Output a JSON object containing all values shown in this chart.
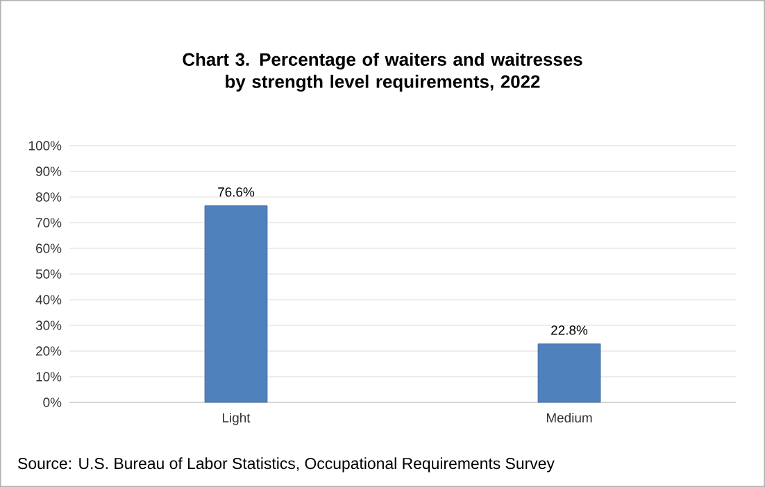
{
  "chart_data": {
    "type": "bar",
    "title": "Chart 3. Percentage of waiters and waitresses by strength level requirements, 2022",
    "categories": [
      "Light",
      "Medium"
    ],
    "values": [
      76.6,
      22.8
    ],
    "value_labels": [
      "76.6%",
      "22.8%"
    ],
    "color": "#4f81bd",
    "ylim": [
      0,
      100
    ],
    "yticks": [
      {
        "value": 0,
        "label": "0%"
      },
      {
        "value": 10,
        "label": "10%"
      },
      {
        "value": 20,
        "label": "20%"
      },
      {
        "value": 30,
        "label": "30%"
      },
      {
        "value": 40,
        "label": "40%"
      },
      {
        "value": 50,
        "label": "50%"
      },
      {
        "value": 60,
        "label": "60%"
      },
      {
        "value": 70,
        "label": "70%"
      },
      {
        "value": 80,
        "label": "80%"
      },
      {
        "value": 90,
        "label": "90%"
      },
      {
        "value": 100,
        "label": "100%"
      }
    ],
    "grid": true,
    "annotations": [
      "Source: U.S. Bureau of Labor Statistics, Occupational Requirements Survey"
    ]
  }
}
